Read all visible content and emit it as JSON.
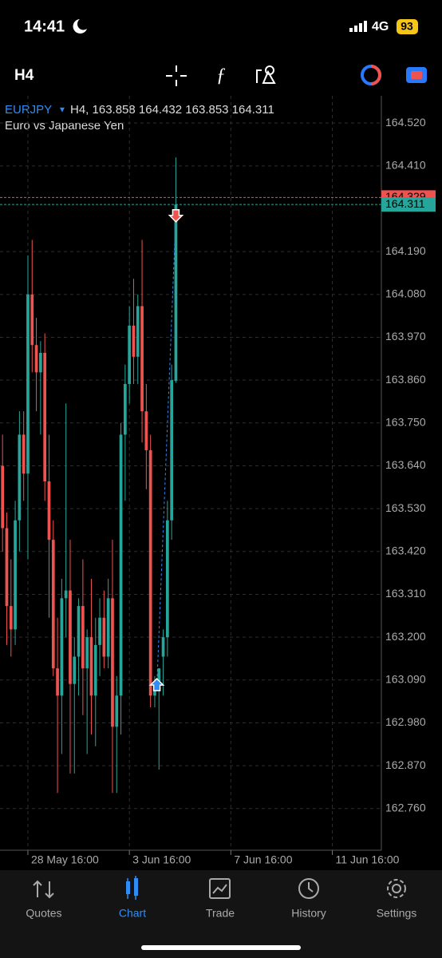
{
  "status_bar": {
    "time": "14:41",
    "network": "4G",
    "battery": "93"
  },
  "toolbar": {
    "timeframe": "H4"
  },
  "header": {
    "symbol": "EURJPY",
    "info": "H4, 163.858 164.432 163.853 164.311",
    "description": "Euro vs Japanese Yen"
  },
  "chart_data": {
    "type": "candlestick",
    "open": [
      163.64,
      163.48,
      163.28,
      163.22,
      163.5,
      163.72,
      163.62,
      164.08,
      163.95,
      163.88,
      163.93,
      163.6,
      163.45,
      163.12,
      163.05,
      163.3,
      163.32,
      163.08,
      163.15,
      163.28,
      163.12,
      163.2,
      163.05,
      163.18,
      163.25,
      163.15,
      163.3,
      162.97,
      163.05,
      163.72,
      163.85,
      164.0,
      163.92,
      164.05,
      163.78,
      163.68,
      163.05,
      163.08,
      163.15,
      163.2,
      163.5,
      163.858
    ],
    "high": [
      163.72,
      163.52,
      163.4,
      163.55,
      163.78,
      163.78,
      164.18,
      164.22,
      164.02,
      163.96,
      163.98,
      163.72,
      163.5,
      163.25,
      163.35,
      163.8,
      163.45,
      163.2,
      163.3,
      163.4,
      163.22,
      163.35,
      163.25,
      163.3,
      163.32,
      163.35,
      163.45,
      163.1,
      163.75,
      163.9,
      164.05,
      164.12,
      164.08,
      164.22,
      163.85,
      163.72,
      163.1,
      163.12,
      163.22,
      163.55,
      163.9,
      164.432
    ],
    "low": [
      163.42,
      163.18,
      163.15,
      163.18,
      163.42,
      163.55,
      163.4,
      163.88,
      163.78,
      163.72,
      163.55,
      163.25,
      163.1,
      162.8,
      162.9,
      163.2,
      162.85,
      162.85,
      163.05,
      163.0,
      162.9,
      162.95,
      162.92,
      163.1,
      163.12,
      163.12,
      162.8,
      162.8,
      162.95,
      163.55,
      163.8,
      163.85,
      163.85,
      163.7,
      163.58,
      163.02,
      163.02,
      162.86,
      163.05,
      163.15,
      163.45,
      163.853
    ],
    "close": [
      163.48,
      163.28,
      163.22,
      163.5,
      163.72,
      163.62,
      164.08,
      163.95,
      163.88,
      163.93,
      163.6,
      163.45,
      163.12,
      163.05,
      163.3,
      163.32,
      163.08,
      163.15,
      163.28,
      163.12,
      163.2,
      163.05,
      163.18,
      163.25,
      163.15,
      163.3,
      162.97,
      163.05,
      163.72,
      163.85,
      164.0,
      163.92,
      164.05,
      163.78,
      163.68,
      163.05,
      163.08,
      163.12,
      163.2,
      163.5,
      163.86,
      164.311
    ],
    "up_color": "#26a69a",
    "down_color": "#ef5350",
    "ylim": [
      162.653,
      164.59
    ],
    "yticks": [
      {
        "value": 164.52,
        "label": "164.520"
      },
      {
        "value": 164.41,
        "label": "164.410"
      },
      {
        "value": 164.19,
        "label": "164.190"
      },
      {
        "value": 164.08,
        "label": "164.080"
      },
      {
        "value": 163.97,
        "label": "163.970"
      },
      {
        "value": 163.86,
        "label": "163.860"
      },
      {
        "value": 163.75,
        "label": "163.750"
      },
      {
        "value": 163.64,
        "label": "163.640"
      },
      {
        "value": 163.53,
        "label": "163.530"
      },
      {
        "value": 163.42,
        "label": "163.420"
      },
      {
        "value": 163.31,
        "label": "163.310"
      },
      {
        "value": 163.2,
        "label": "163.200"
      },
      {
        "value": 163.09,
        "label": "163.090"
      },
      {
        "value": 162.98,
        "label": "162.980"
      },
      {
        "value": 162.87,
        "label": "162.870"
      },
      {
        "value": 162.76,
        "label": "162.760"
      }
    ],
    "xlim": [
      -0.6,
      89.6
    ],
    "xticks": [
      {
        "value": 6,
        "label": "28 May 16:00"
      },
      {
        "value": 30,
        "label": "3 Jun 16:00"
      },
      {
        "value": 54,
        "label": "7 Jun 16:00"
      },
      {
        "value": 78,
        "label": "11 Jun 16:00"
      }
    ],
    "grid": true,
    "ask": 164.329,
    "bid": 164.311,
    "deals": {
      "buy_price": 163.075,
      "sell_price": 164.285
    }
  },
  "tabs": [
    "Quotes",
    "Chart",
    "Trade",
    "History",
    "Settings"
  ]
}
